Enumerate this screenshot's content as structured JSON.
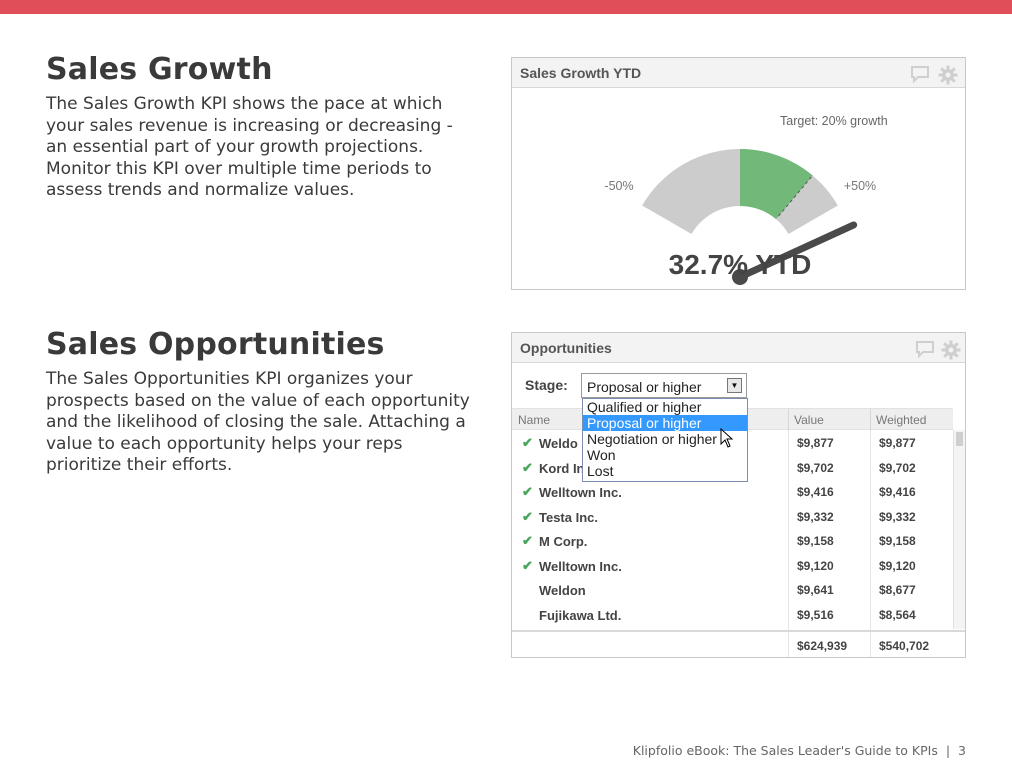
{
  "colors": {
    "accent_bar": "#e04e5a",
    "gauge_green": "#72b879",
    "gauge_gray": "#cccccc",
    "needle": "#4a4a4a",
    "dropdown_selected": "#3399ff",
    "check_green": "#4aa55a"
  },
  "sections": [
    {
      "title": "Sales Growth",
      "body": "The Sales Growth KPI shows the pace at which your sales revenue is increasing or decreasing - an essential part of your growth projections. Monitor this KPI over multiple time periods to assess trends and normalize values."
    },
    {
      "title": "Sales Opportunities",
      "body": "The Sales Opportunities KPI organizes your prospects based on the value of each opportunity and the likelihood of closing the sale. Attaching a value to each opportunity helps your reps prioritize their efforts."
    }
  ],
  "growth_widget": {
    "title": "Sales Growth YTD",
    "icons": [
      "comment-icon",
      "gear-icon"
    ],
    "gauge": {
      "min_label": "-50%",
      "max_label": "+50%",
      "target_label": "Target: 20% growth",
      "min": -50,
      "max": 50,
      "target": 20,
      "value": 32.7,
      "value_label": "32.7% YTD"
    }
  },
  "opportunities_widget": {
    "title": "Opportunities",
    "stage_label": "Stage:",
    "stage_selected": "Proposal or higher",
    "stage_options": [
      "Qualified or higher",
      "Proposal or higher",
      "Negotiation or higher",
      "Won",
      "Lost"
    ],
    "columns": [
      "Name",
      "Value",
      "Weighted"
    ],
    "rows": [
      {
        "name": "Weldo",
        "value": "$9,877",
        "weighted": "$9,877",
        "won": true
      },
      {
        "name": "Kord In",
        "value": "$9,702",
        "weighted": "$9,702",
        "won": true
      },
      {
        "name": "Welltown Inc.",
        "value": "$9,416",
        "weighted": "$9,416",
        "won": true
      },
      {
        "name": "Testa Inc.",
        "value": "$9,332",
        "weighted": "$9,332",
        "won": true
      },
      {
        "name": "M Corp.",
        "value": "$9,158",
        "weighted": "$9,158",
        "won": true
      },
      {
        "name": "Welltown Inc.",
        "value": "$9,120",
        "weighted": "$9,120",
        "won": true
      },
      {
        "name": "Weldon",
        "value": "$9,641",
        "weighted": "$8,677",
        "won": false
      },
      {
        "name": "Fujikawa Ltd.",
        "value": "$9,516",
        "weighted": "$8,564",
        "won": false
      }
    ],
    "total_value": "$624,939",
    "total_weighted": "$540,702"
  },
  "footer": {
    "text": "Klipfolio eBook: The Sales Leader's Guide to KPIs",
    "page": "3"
  }
}
